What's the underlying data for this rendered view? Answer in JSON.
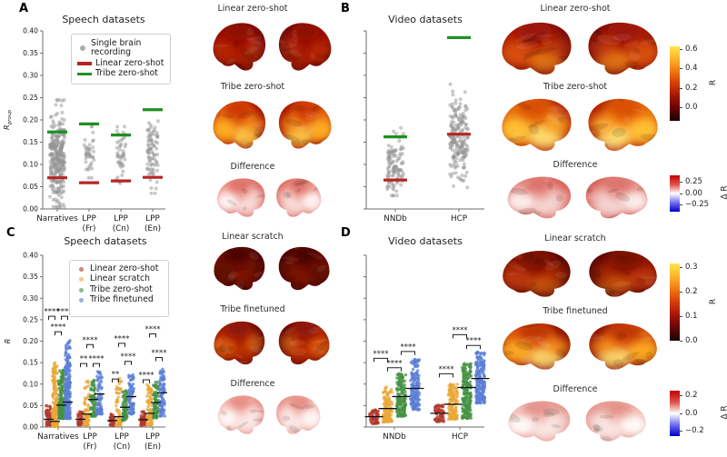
{
  "figure": {
    "panel_letters": [
      "A",
      "B",
      "C",
      "D"
    ],
    "panels": {
      "a": {
        "title": "Speech datasets",
        "ylabel_main": "R",
        "ylabel_sub": "group",
        "legend": {
          "item1_line1": "Single brain",
          "item1_line2": "recording",
          "item2": "Linear zero-shot",
          "item3": "Tribe zero-shot"
        },
        "brain_rows": [
          {
            "title": "Linear zero-shot",
            "palette": "dark_red"
          },
          {
            "title": "Tribe zero-shot",
            "palette": "hot_orange"
          },
          {
            "title": "Difference",
            "palette": "diff_light"
          }
        ]
      },
      "b": {
        "title": "Video datasets",
        "brain_rows": [
          {
            "title": "Linear zero-shot",
            "palette": "dark_red_warm"
          },
          {
            "title": "Tribe zero-shot",
            "palette": "hot_bright"
          },
          {
            "title": "Difference",
            "palette": "diff_mid"
          }
        ],
        "colorbars": [
          {
            "cmap": "hot",
            "vmin": -0.13,
            "vmax": 0.63,
            "ticks": [
              0.6,
              0.4,
              0.2,
              0.0
            ],
            "tick_labels": [
              "0.6",
              "0.4",
              "0.2",
              "0.0"
            ],
            "label": "R"
          },
          {
            "cmap": "bwr",
            "vmin": -0.39,
            "vmax": 0.39,
            "ticks": [
              0.25,
              0.0,
              -0.25
            ],
            "tick_labels": [
              "0.25",
              "0.00",
              "−0.25"
            ],
            "label": "Δ R"
          }
        ]
      },
      "c": {
        "title": "Speech datasets",
        "ylabel_main": "R",
        "legend": {
          "items": [
            "Linear zero-shot",
            "Linear scratch",
            "Tribe zero-shot",
            "Tribe finetuned"
          ]
        },
        "brain_rows": [
          {
            "title": "Linear scratch",
            "palette": "very_dark"
          },
          {
            "title": "Tribe finetuned",
            "palette": "dark_warm"
          },
          {
            "title": "Difference",
            "palette": "diff_pale"
          }
        ]
      },
      "d": {
        "title": "Video datasets",
        "brain_rows": [
          {
            "title": "Linear scratch",
            "palette": "dark_red_warm2"
          },
          {
            "title": "Tribe finetuned",
            "palette": "hot_bright2"
          },
          {
            "title": "Difference",
            "palette": "diff_pale2"
          }
        ],
        "colorbars": [
          {
            "cmap": "hot",
            "vmin": 0.0,
            "vmax": 0.315,
            "ticks": [
              0.3,
              0.2,
              0.1,
              0.0
            ],
            "tick_labels": [
              "0.3",
              "0.2",
              "0.1",
              "0.0"
            ],
            "label": "R"
          },
          {
            "cmap": "bwr",
            "vmin": -0.256,
            "vmax": 0.256,
            "ticks": [
              0.2,
              0.0,
              -0.2
            ],
            "tick_labels": [
              "0.2",
              "0.0",
              "−0.2"
            ],
            "label": "Δ R"
          }
        ]
      }
    }
  },
  "chart_data": [
    {
      "id": "A",
      "type": "scatter",
      "title": "Speech datasets",
      "ylabel": "R_group",
      "ylim": [
        0,
        0.4
      ],
      "yticks": [
        0,
        0.05,
        0.1,
        0.15,
        0.2,
        0.25,
        0.3,
        0.35,
        0.4
      ],
      "categories": [
        "Narratives",
        "LPP (Fr)",
        "LPP (Cn)",
        "LPP (En)"
      ],
      "categories_lines": [
        [
          "Narratives"
        ],
        [
          "LPP",
          "(Fr)"
        ],
        [
          "LPP",
          "(Cn)"
        ],
        [
          "LPP",
          "(En)"
        ]
      ],
      "legend": [
        "Single brain recording",
        "Linear zero-shot",
        "Tribe zero-shot"
      ],
      "series": [
        {
          "name": "Linear zero-shot",
          "color": "#b52622",
          "values": [
            0.07,
            0.059,
            0.063,
            0.071
          ]
        },
        {
          "name": "Tribe zero-shot",
          "color": "#1f9021",
          "values": [
            0.173,
            0.191,
            0.166,
            0.223
          ]
        }
      ],
      "points": [
        {
          "category": "Narratives",
          "n": 320,
          "center": 0.115,
          "sd": 0.05,
          "range": [
            0.005,
            0.245
          ]
        },
        {
          "category": "LPP (Fr)",
          "n": 42,
          "center": 0.125,
          "sd": 0.032,
          "range": [
            0.07,
            0.185
          ]
        },
        {
          "category": "LPP (Cn)",
          "n": 48,
          "center": 0.128,
          "sd": 0.032,
          "range": [
            0.05,
            0.185
          ]
        },
        {
          "category": "LPP (En)",
          "n": 85,
          "center": 0.13,
          "sd": 0.042,
          "range": [
            0.035,
            0.2
          ]
        }
      ]
    },
    {
      "id": "B",
      "type": "scatter",
      "title": "Video datasets",
      "ylabel": "",
      "ylim": [
        0,
        0.4
      ],
      "yticks": [
        0,
        0.05,
        0.1,
        0.15,
        0.2,
        0.25,
        0.3,
        0.35,
        0.4
      ],
      "categories": [
        "NNDb",
        "HCP"
      ],
      "categories_lines": [
        [
          "NNDb"
        ],
        [
          "HCP"
        ]
      ],
      "series": [
        {
          "name": "Linear zero-shot",
          "color": "#b52622",
          "values": [
            0.065,
            0.168
          ]
        },
        {
          "name": "Tribe zero-shot",
          "color": "#1f9021",
          "values": [
            0.162,
            0.385
          ]
        }
      ],
      "points": [
        {
          "category": "NNDb",
          "n": 115,
          "center": 0.098,
          "sd": 0.035,
          "range": [
            0.03,
            0.185
          ]
        },
        {
          "category": "HCP",
          "n": 210,
          "center": 0.158,
          "sd": 0.042,
          "range": [
            0.045,
            0.28
          ]
        }
      ]
    },
    {
      "id": "C",
      "type": "strip",
      "title": "Speech datasets",
      "ylabel": "R",
      "ylim": [
        0,
        0.4
      ],
      "yticks": [
        0,
        0.05,
        0.1,
        0.15,
        0.2,
        0.25,
        0.3,
        0.35,
        0.4
      ],
      "categories": [
        "Narratives",
        "LPP (Fr)",
        "LPP (Cn)",
        "LPP (En)"
      ],
      "categories_lines": [
        [
          "Narratives"
        ],
        [
          "LPP",
          "(Fr)"
        ],
        [
          "LPP",
          "(Cn)"
        ],
        [
          "LPP",
          "(En)"
        ]
      ],
      "series_names": [
        "Linear zero-shot",
        "Linear scratch",
        "Tribe zero-shot",
        "Tribe finetuned"
      ],
      "series_colors": [
        "#b23a2e",
        "#eaa738",
        "#469144",
        "#5b7fd6"
      ],
      "means": [
        [
          0.018,
          0.013,
          0.051,
          0.058
        ],
        [
          0.018,
          0.03,
          0.064,
          0.077
        ],
        [
          0.015,
          0.024,
          0.046,
          0.071
        ],
        [
          0.017,
          0.032,
          0.057,
          0.08
        ]
      ],
      "dist": [
        [
          [
            60,
            0.004,
            0.05,
            1.6
          ],
          [
            220,
            0.002,
            0.15,
            2.6
          ],
          [
            200,
            0.02,
            0.135,
            1.8
          ],
          [
            260,
            0.02,
            0.205,
            2.0
          ]
        ],
        [
          [
            45,
            0.005,
            0.036,
            1.5
          ],
          [
            70,
            0.005,
            0.115,
            2.2
          ],
          [
            70,
            0.025,
            0.11,
            1.5
          ],
          [
            80,
            0.03,
            0.13,
            1.5
          ]
        ],
        [
          [
            45,
            0.004,
            0.03,
            1.5
          ],
          [
            70,
            0.004,
            0.115,
            2.4
          ],
          [
            70,
            0.015,
            0.085,
            1.4
          ],
          [
            80,
            0.03,
            0.125,
            1.4
          ]
        ],
        [
          [
            50,
            0.004,
            0.036,
            1.5
          ],
          [
            80,
            0.005,
            0.1,
            1.9
          ],
          [
            80,
            0.02,
            0.105,
            1.3
          ],
          [
            90,
            0.025,
            0.135,
            1.2
          ]
        ]
      ],
      "significance": [
        {
          "category": 0,
          "pair": [
            0,
            1
          ],
          "stars": "****",
          "y": 0.258
        },
        {
          "category": 0,
          "pair": [
            2,
            3
          ],
          "stars": "****",
          "y": 0.258
        },
        {
          "category": 0,
          "pair": [
            1,
            2
          ],
          "stars": "****",
          "y": 0.222
        },
        {
          "category": 1,
          "pair": [
            1,
            2
          ],
          "stars": "****",
          "y": 0.192
        },
        {
          "category": 1,
          "pair": [
            0,
            1
          ],
          "stars": "**",
          "y": 0.148
        },
        {
          "category": 1,
          "pair": [
            2,
            3
          ],
          "stars": "****",
          "y": 0.148
        },
        {
          "category": 2,
          "pair": [
            1,
            2
          ],
          "stars": "****",
          "y": 0.195
        },
        {
          "category": 2,
          "pair": [
            2,
            3
          ],
          "stars": "****",
          "y": 0.153
        },
        {
          "category": 2,
          "pair": [
            0,
            1
          ],
          "stars": "**",
          "y": 0.112
        },
        {
          "category": 3,
          "pair": [
            1,
            2
          ],
          "stars": "****",
          "y": 0.217
        },
        {
          "category": 3,
          "pair": [
            2,
            3
          ],
          "stars": "****",
          "y": 0.162
        },
        {
          "category": 3,
          "pair": [
            0,
            1
          ],
          "stars": "****",
          "y": 0.11
        }
      ]
    },
    {
      "id": "D",
      "type": "strip",
      "title": "Video datasets",
      "ylabel": "",
      "ylim": [
        0,
        0.4
      ],
      "yticks": [
        0,
        0.05,
        0.1,
        0.15,
        0.2,
        0.25,
        0.3,
        0.35,
        0.4
      ],
      "categories": [
        "NNDb",
        "HCP"
      ],
      "categories_lines": [
        [
          "NNDb"
        ],
        [
          "HCP"
        ]
      ],
      "series_names": [
        "Linear zero-shot",
        "Linear scratch",
        "Tribe zero-shot",
        "Tribe finetuned"
      ],
      "series_colors": [
        "#b23a2e",
        "#eaa738",
        "#469144",
        "#5b7fd6"
      ],
      "means": [
        [
          0.024,
          0.043,
          0.071,
          0.09
        ],
        [
          0.032,
          0.053,
          0.092,
          0.113
        ]
      ],
      "dist": [
        [
          [
            60,
            0.008,
            0.042,
            1.4
          ],
          [
            130,
            0.012,
            0.095,
            1.7
          ],
          [
            150,
            0.025,
            0.125,
            1.4
          ],
          [
            170,
            0.04,
            0.158,
            1.4
          ]
        ],
        [
          [
            70,
            0.012,
            0.052,
            1.4
          ],
          [
            140,
            0.018,
            0.1,
            1.5
          ],
          [
            200,
            0.02,
            0.148,
            1.3
          ],
          [
            200,
            0.055,
            0.175,
            1.2
          ]
        ]
      ],
      "significance": [
        {
          "category": 0,
          "pair": [
            0,
            1
          ],
          "stars": "****",
          "y": 0.16
        },
        {
          "category": 0,
          "pair": [
            1,
            2
          ],
          "stars": "****",
          "y": 0.138
        },
        {
          "category": 0,
          "pair": [
            2,
            3
          ],
          "stars": "****",
          "y": 0.176
        },
        {
          "category": 1,
          "pair": [
            0,
            1
          ],
          "stars": "****",
          "y": 0.124
        },
        {
          "category": 1,
          "pair": [
            1,
            2
          ],
          "stars": "****",
          "y": 0.215
        },
        {
          "category": 1,
          "pair": [
            2,
            3
          ],
          "stars": "****",
          "y": 0.19
        }
      ]
    }
  ],
  "colors": {
    "linear_zero_shot_line": "#b52622",
    "tribe_zero_shot_line": "#1f9021",
    "single_recording_dot": "#969696",
    "axis": "#6e6e6e",
    "sig_annotation": "#222222"
  },
  "brain_palettes": {
    "dark_red": {
      "base": "#720d08",
      "spots": [
        [
          "#a31206",
          0.9
        ],
        [
          "#c93a0c",
          0.5
        ],
        [
          "#b92e0a",
          0.5
        ],
        [
          "#8a1005",
          0.8
        ],
        [
          "#d9531a",
          0.35
        ]
      ]
    },
    "hot_orange": {
      "base": "#a51404",
      "spots": [
        [
          "#e8650e",
          0.95
        ],
        [
          "#ffb224",
          0.9
        ],
        [
          "#ffd34d",
          0.85
        ],
        [
          "#c72a06",
          0.8
        ],
        [
          "#ff9e1b",
          0.6
        ]
      ]
    },
    "diff_light": {
      "base": "#dd7168",
      "spots": [
        [
          "#f2a79e",
          0.9
        ],
        [
          "#ffffff",
          0.85
        ],
        [
          "#fdf4f2",
          0.7
        ],
        [
          "#d4544a",
          0.6
        ],
        [
          "#ffffff",
          0.5
        ]
      ]
    },
    "dark_red_warm": {
      "base": "#7e0e07",
      "spots": [
        [
          "#b31d07",
          0.9
        ],
        [
          "#e25b0d",
          0.8
        ],
        [
          "#ff9e1b",
          0.65
        ],
        [
          "#93150a",
          0.7
        ],
        [
          "#d14a10",
          0.5
        ]
      ]
    },
    "hot_bright": {
      "base": "#b02004",
      "spots": [
        [
          "#f07a10",
          0.95
        ],
        [
          "#ffc435",
          0.95
        ],
        [
          "#ffe97a",
          0.9
        ],
        [
          "#d03a08",
          0.7
        ],
        [
          "#ffac28",
          0.8
        ]
      ]
    },
    "diff_mid": {
      "base": "#d96058",
      "spots": [
        [
          "#eda49c",
          0.9
        ],
        [
          "#ffffff",
          0.8
        ],
        [
          "#f7e9e7",
          0.75
        ],
        [
          "#cc4a42",
          0.5
        ],
        [
          "#ffffff",
          0.45
        ]
      ]
    },
    "very_dark": {
      "base": "#4d0604",
      "spots": [
        [
          "#7a0f06",
          0.8
        ],
        [
          "#5e0a05",
          0.8
        ],
        [
          "#8c1508",
          0.5
        ],
        [
          "#3f0503",
          0.8
        ],
        [
          "#6e1208",
          0.4
        ]
      ]
    },
    "dark_warm": {
      "base": "#6b0a05",
      "spots": [
        [
          "#b42606",
          0.85
        ],
        [
          "#e86a10",
          0.7
        ],
        [
          "#c8380a",
          0.6
        ],
        [
          "#82100a",
          0.7
        ],
        [
          "#ff9a22",
          0.45
        ]
      ]
    },
    "diff_pale": {
      "base": "#e9958c",
      "spots": [
        [
          "#f7c9c2",
          0.9
        ],
        [
          "#ffffff",
          0.85
        ],
        [
          "#fdf2f0",
          0.8
        ],
        [
          "#d96055",
          0.55
        ],
        [
          "#ffffff",
          0.6
        ]
      ]
    },
    "dark_red_warm2": {
      "base": "#5a0805",
      "spots": [
        [
          "#9c1406",
          0.85
        ],
        [
          "#d4490e",
          0.6
        ],
        [
          "#ff8c1a",
          0.5
        ],
        [
          "#700c05",
          0.8
        ],
        [
          "#b83208",
          0.5
        ]
      ]
    },
    "hot_bright2": {
      "base": "#8c1004",
      "spots": [
        [
          "#e8650e",
          0.9
        ],
        [
          "#ffb224",
          0.85
        ],
        [
          "#ffe97a",
          0.85
        ],
        [
          "#b02306",
          0.7
        ],
        [
          "#ff9e1b",
          0.7
        ]
      ]
    },
    "diff_pale2": {
      "base": "#e5988f",
      "spots": [
        [
          "#f4c3bc",
          0.9
        ],
        [
          "#ffffff",
          0.9
        ],
        [
          "#fdf0ee",
          0.8
        ],
        [
          "#d4665c",
          0.5
        ],
        [
          "#ffffff",
          0.55
        ]
      ]
    }
  }
}
